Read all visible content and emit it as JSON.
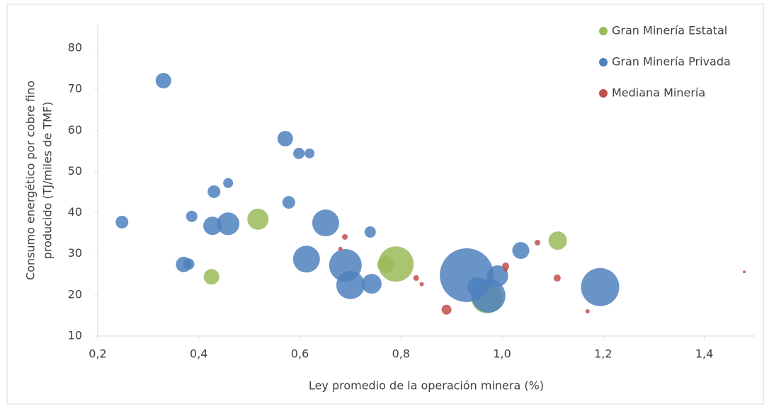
{
  "chart_data": {
    "type": "bubble",
    "x_label": "Ley promedio de la operación minera (%)",
    "y_label": [
      "Consumo energético por cobre fino",
      "producido (TJ/miles de TMF)"
    ],
    "xlim": [
      0.2,
      1.5
    ],
    "ylim": [
      10,
      85
    ],
    "xticks": [
      {
        "value": 0.2,
        "label": "0,2"
      },
      {
        "value": 0.4,
        "label": "0,4"
      },
      {
        "value": 0.6,
        "label": "0,6"
      },
      {
        "value": 0.8,
        "label": "0,8"
      },
      {
        "value": 1.0,
        "label": "1,0"
      },
      {
        "value": 1.2,
        "label": "1,2"
      },
      {
        "value": 1.4,
        "label": "1,4"
      }
    ],
    "yticks": [
      10,
      20,
      30,
      40,
      50,
      60,
      70,
      80
    ],
    "legend": "top-right",
    "series": [
      {
        "name": "Gran Minería Estatal",
        "color": "#9bbb59",
        "x": [
          0.517,
          0.425,
          0.77,
          0.79,
          0.97,
          1.11
        ],
        "values": [
          38.4,
          24.4,
          27.4,
          27.5,
          19.3,
          33.2
        ],
        "sizes": [
          225,
          121,
          144,
          625,
          484,
          169
        ]
      },
      {
        "name": "Gran Minería Privada",
        "color": "#4f81bd",
        "x": [
          0.33,
          0.248,
          0.386,
          0.43,
          0.458,
          0.427,
          0.458,
          0.37,
          0.38,
          0.571,
          0.598,
          0.619,
          0.578,
          0.613,
          0.651,
          0.69,
          0.7,
          0.739,
          0.742,
          0.93,
          0.951,
          0.973,
          0.991,
          1.037,
          1.194
        ],
        "values": [
          72.1,
          37.7,
          39.1,
          45.1,
          47.2,
          36.8,
          37.3,
          27.4,
          27.5,
          58.0,
          54.4,
          54.4,
          42.5,
          28.7,
          37.5,
          27.2,
          22.4,
          35.3,
          22.7,
          24.8,
          21.9,
          19.8,
          24.6,
          30.8,
          21.9
        ],
        "sizes": [
          121,
          81,
          64,
          81,
          49,
          169,
          256,
          121,
          64,
          121,
          64,
          49,
          81,
          361,
          361,
          529,
          400,
          64,
          196,
          1444,
          196,
          576,
          225,
          144,
          729
        ]
      },
      {
        "name": "Mediana Minería",
        "color": "#c0504d",
        "x": [
          0.689,
          0.68,
          0.83,
          0.841,
          0.89,
          1.007,
          1.007,
          1.07,
          1.109,
          1.169,
          1.479
        ],
        "values": [
          34.1,
          31.2,
          24.1,
          22.6,
          16.4,
          27.0,
          26.2,
          32.7,
          24.1,
          16.0,
          25.6
        ],
        "sizes": [
          16,
          9,
          16,
          9,
          49,
          25,
          9,
          16,
          25,
          9,
          4
        ]
      }
    ]
  }
}
